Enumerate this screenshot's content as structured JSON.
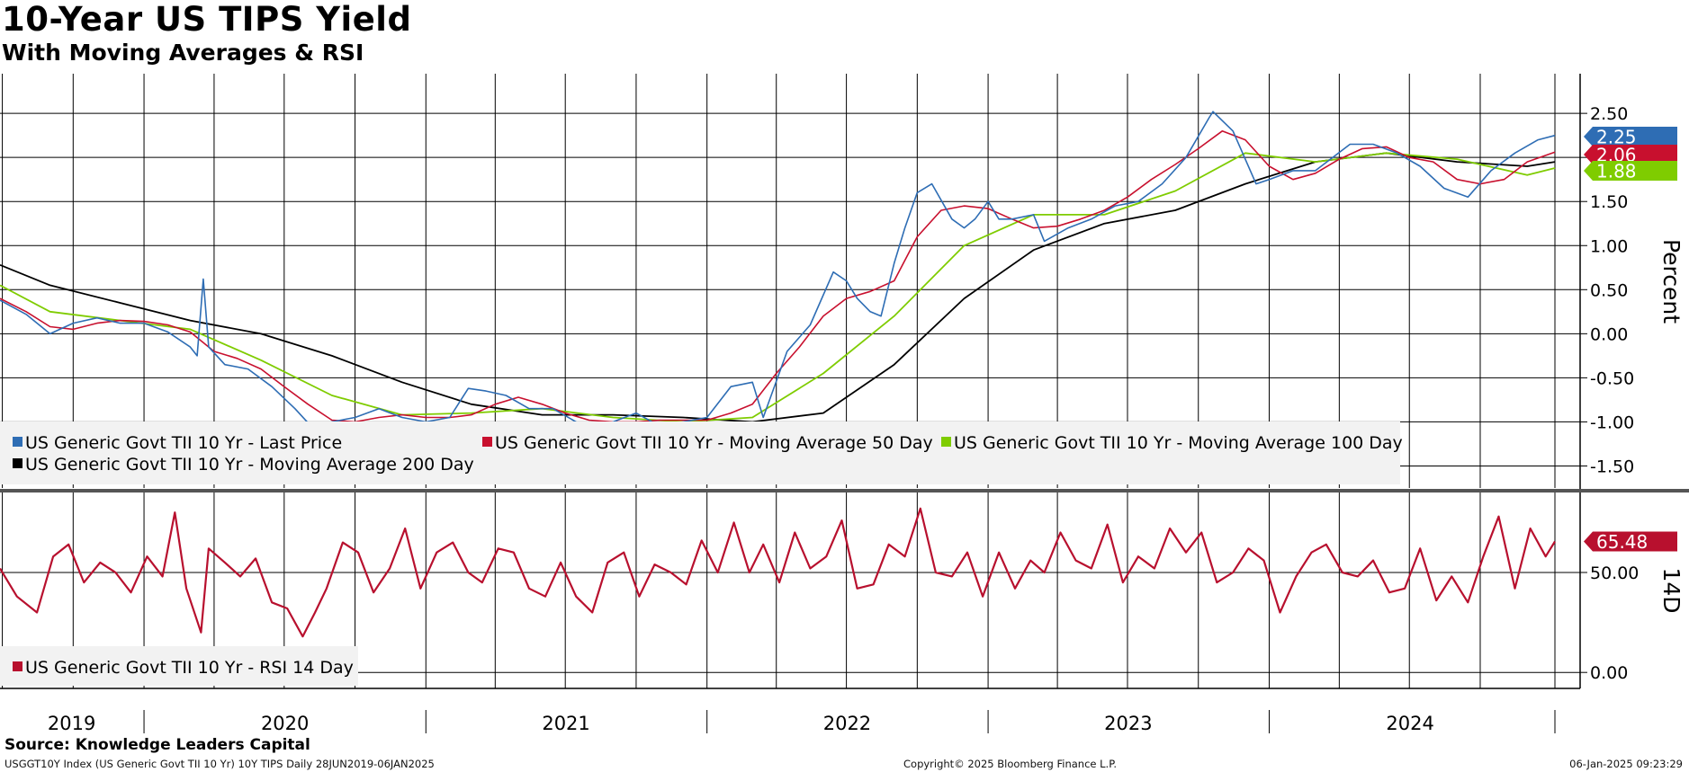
{
  "header": {
    "title": "10-Year US TIPS Yield",
    "subtitle": "With Moving Averages & RSI"
  },
  "footer": {
    "source": "Source: Knowledge Leaders Capital",
    "ticker_line": "USGGT10Y Index (US Generic Govt TII 10 Yr) 10Y TIPS  Daily 28JUN2019-06JAN2025",
    "copyright": "Copyright© 2025 Bloomberg Finance L.P.",
    "timestamp": "06-Jan-2025 09:23:29"
  },
  "colors": {
    "last_price": "#2e6db4",
    "ma50": "#c8102e",
    "ma100": "#7fcc00",
    "ma200": "#000000",
    "rsi": "#b8102e",
    "grid": "#000000",
    "legend_bg": "#f2f2f2"
  },
  "chart_data": [
    {
      "type": "line",
      "ylabel": "Percent",
      "ylim": [
        -1.75,
        2.95
      ],
      "yticks": [
        "2.50",
        "2.00",
        "1.50",
        "1.00",
        "0.50",
        "0.00",
        "-0.50",
        "-1.00",
        "-1.50"
      ],
      "x_categories": [
        "2019",
        "2020",
        "2021",
        "2022",
        "2023",
        "2024"
      ],
      "x_range": [
        "2019-06-28",
        "2025-01-06"
      ],
      "grid": true,
      "legend_position": "bottom-left",
      "series": [
        {
          "name": "US Generic Govt TII 10 Yr - Last Price",
          "color_key": "last_price",
          "last_value_label": "2.25",
          "x": [
            "2019-06-28",
            "2019-08-01",
            "2019-09-01",
            "2019-10-01",
            "2019-11-01",
            "2019-12-01",
            "2020-01-01",
            "2020-02-01",
            "2020-03-01",
            "2020-03-10",
            "2020-03-18",
            "2020-03-25",
            "2020-04-15",
            "2020-05-15",
            "2020-06-15",
            "2020-07-15",
            "2020-08-05",
            "2020-09-01",
            "2020-10-01",
            "2020-11-01",
            "2020-12-01",
            "2021-01-01",
            "2021-02-01",
            "2021-02-25",
            "2021-03-20",
            "2021-04-15",
            "2021-05-15",
            "2021-06-15",
            "2021-07-15",
            "2021-08-05",
            "2021-09-01",
            "2021-10-01",
            "2021-11-01",
            "2021-12-01",
            "2022-01-01",
            "2022-02-01",
            "2022-03-01",
            "2022-03-15",
            "2022-04-15",
            "2022-05-15",
            "2022-06-14",
            "2022-07-01",
            "2022-07-15",
            "2022-08-01",
            "2022-08-15",
            "2022-09-01",
            "2022-09-15",
            "2022-10-01",
            "2022-10-20",
            "2022-11-15",
            "2022-12-01",
            "2022-12-15",
            "2023-01-01",
            "2023-01-15",
            "2023-02-01",
            "2023-03-01",
            "2023-03-15",
            "2023-04-15",
            "2023-05-15",
            "2023-06-15",
            "2023-07-15",
            "2023-08-15",
            "2023-09-15",
            "2023-10-15",
            "2023-10-20",
            "2023-11-15",
            "2023-12-15",
            "2024-01-01",
            "2024-02-01",
            "2024-03-01",
            "2024-04-15",
            "2024-05-15",
            "2024-06-15",
            "2024-07-15",
            "2024-08-15",
            "2024-09-15",
            "2024-10-15",
            "2024-11-15",
            "2024-12-15",
            "2025-01-06"
          ],
          "y": [
            0.38,
            0.22,
            0.0,
            0.12,
            0.18,
            0.12,
            0.12,
            0.02,
            -0.15,
            -0.25,
            0.62,
            -0.15,
            -0.35,
            -0.4,
            -0.6,
            -0.85,
            -1.05,
            -1.0,
            -0.95,
            -0.85,
            -0.95,
            -1.0,
            -0.95,
            -0.62,
            -0.65,
            -0.7,
            -0.85,
            -0.85,
            -1.0,
            -1.1,
            -1.0,
            -0.9,
            -1.05,
            -1.0,
            -0.95,
            -0.6,
            -0.55,
            -0.95,
            -0.2,
            0.1,
            0.7,
            0.6,
            0.4,
            0.25,
            0.2,
            0.8,
            1.2,
            1.6,
            1.7,
            1.3,
            1.2,
            1.3,
            1.5,
            1.3,
            1.3,
            1.35,
            1.05,
            1.2,
            1.3,
            1.45,
            1.5,
            1.7,
            2.0,
            2.45,
            2.52,
            2.3,
            1.7,
            1.75,
            1.85,
            1.85,
            2.15,
            2.15,
            2.05,
            1.9,
            1.65,
            1.55,
            1.85,
            2.05,
            2.2,
            2.25
          ]
        },
        {
          "name": "US Generic Govt TII 10 Yr - Moving Average 50 Day",
          "color_key": "ma50",
          "last_value_label": "2.06",
          "x": [
            "2019-06-28",
            "2019-08-01",
            "2019-09-01",
            "2019-10-01",
            "2019-11-01",
            "2019-12-01",
            "2020-01-01",
            "2020-02-01",
            "2020-03-01",
            "2020-04-01",
            "2020-05-01",
            "2020-06-01",
            "2020-07-01",
            "2020-08-01",
            "2020-09-01",
            "2020-10-01",
            "2020-11-01",
            "2020-12-01",
            "2021-01-01",
            "2021-02-01",
            "2021-03-01",
            "2021-04-01",
            "2021-05-01",
            "2021-06-01",
            "2021-07-01",
            "2021-08-01",
            "2021-09-01",
            "2021-10-01",
            "2021-11-01",
            "2021-12-01",
            "2022-01-01",
            "2022-02-01",
            "2022-03-01",
            "2022-04-01",
            "2022-05-01",
            "2022-06-01",
            "2022-07-01",
            "2022-08-01",
            "2022-09-01",
            "2022-10-01",
            "2022-11-01",
            "2022-12-01",
            "2023-01-01",
            "2023-02-01",
            "2023-03-01",
            "2023-04-01",
            "2023-05-01",
            "2023-06-01",
            "2023-07-01",
            "2023-08-01",
            "2023-09-01",
            "2023-10-01",
            "2023-11-01",
            "2023-12-01",
            "2024-01-01",
            "2024-02-01",
            "2024-03-01",
            "2024-04-01",
            "2024-05-01",
            "2024-06-01",
            "2024-07-01",
            "2024-08-01",
            "2024-09-01",
            "2024-10-01",
            "2024-11-01",
            "2024-12-01",
            "2025-01-06"
          ],
          "y": [
            0.4,
            0.25,
            0.08,
            0.05,
            0.12,
            0.15,
            0.14,
            0.1,
            0.02,
            -0.2,
            -0.28,
            -0.4,
            -0.6,
            -0.8,
            -0.98,
            -1.0,
            -0.95,
            -0.92,
            -0.95,
            -0.95,
            -0.92,
            -0.8,
            -0.72,
            -0.8,
            -0.9,
            -0.98,
            -1.0,
            -1.0,
            -0.98,
            -0.98,
            -0.98,
            -0.9,
            -0.8,
            -0.45,
            -0.15,
            0.2,
            0.4,
            0.48,
            0.6,
            1.1,
            1.4,
            1.45,
            1.42,
            1.3,
            1.2,
            1.22,
            1.3,
            1.4,
            1.55,
            1.75,
            1.92,
            2.1,
            2.3,
            2.2,
            1.9,
            1.75,
            1.82,
            1.98,
            2.1,
            2.12,
            2.0,
            1.95,
            1.75,
            1.7,
            1.75,
            1.95,
            2.06
          ]
        },
        {
          "name": "US Generic Govt TII 10 Yr - Moving Average 100 Day",
          "color_key": "ma100",
          "last_value_label": "1.88",
          "x": [
            "2019-06-28",
            "2019-09-01",
            "2019-12-01",
            "2020-03-01",
            "2020-06-01",
            "2020-09-01",
            "2020-12-01",
            "2021-03-01",
            "2021-06-01",
            "2021-09-01",
            "2021-12-01",
            "2022-03-01",
            "2022-06-01",
            "2022-09-01",
            "2022-12-01",
            "2023-03-01",
            "2023-06-01",
            "2023-09-01",
            "2023-12-01",
            "2024-03-01",
            "2024-06-01",
            "2024-09-01",
            "2024-12-01",
            "2025-01-06"
          ],
          "y": [
            0.55,
            0.25,
            0.15,
            0.05,
            -0.3,
            -0.7,
            -0.92,
            -0.9,
            -0.85,
            -0.95,
            -1.0,
            -0.95,
            -0.45,
            0.2,
            1.0,
            1.35,
            1.35,
            1.62,
            2.05,
            1.95,
            2.05,
            1.98,
            1.8,
            1.88
          ]
        },
        {
          "name": "US Generic Govt TII 10 Yr - Moving Average 200 Day",
          "color_key": "ma200",
          "last_value_label": "",
          "x": [
            "2019-06-28",
            "2019-09-01",
            "2019-12-01",
            "2020-03-01",
            "2020-06-01",
            "2020-09-01",
            "2020-12-01",
            "2021-03-01",
            "2021-06-01",
            "2021-09-01",
            "2021-12-01",
            "2022-03-01",
            "2022-06-01",
            "2022-09-01",
            "2022-12-01",
            "2023-03-01",
            "2023-06-01",
            "2023-09-01",
            "2023-12-01",
            "2024-03-01",
            "2024-06-01",
            "2024-09-01",
            "2024-12-01",
            "2025-01-06"
          ],
          "y": [
            0.78,
            0.55,
            0.35,
            0.15,
            0.0,
            -0.25,
            -0.55,
            -0.8,
            -0.92,
            -0.92,
            -0.95,
            -1.0,
            -0.9,
            -0.35,
            0.4,
            0.95,
            1.25,
            1.4,
            1.7,
            1.95,
            2.05,
            1.95,
            1.9,
            1.95
          ]
        }
      ]
    },
    {
      "type": "line",
      "ylabel": "14D",
      "ylim": [
        -8,
        90
      ],
      "yticks": [
        "50.00",
        "0.00"
      ],
      "legend_position": "bottom-left",
      "series": [
        {
          "name": "US Generic Govt TII 10 Yr - RSI 14 Day",
          "color_key": "rsi",
          "last_value_label": "65.48",
          "x": [
            "2019-06-28",
            "2019-07-20",
            "2019-08-15",
            "2019-09-05",
            "2019-09-25",
            "2019-10-15",
            "2019-11-05",
            "2019-11-25",
            "2019-12-15",
            "2020-01-05",
            "2020-01-25",
            "2020-02-10",
            "2020-02-25",
            "2020-03-15",
            "2020-03-25",
            "2020-04-15",
            "2020-05-05",
            "2020-05-25",
            "2020-06-15",
            "2020-07-05",
            "2020-07-25",
            "2020-08-10",
            "2020-08-25",
            "2020-09-15",
            "2020-10-05",
            "2020-10-25",
            "2020-11-15",
            "2020-12-05",
            "2020-12-25",
            "2021-01-15",
            "2021-02-05",
            "2021-02-25",
            "2021-03-15",
            "2021-04-05",
            "2021-04-25",
            "2021-05-15",
            "2021-06-05",
            "2021-06-25",
            "2021-07-15",
            "2021-08-05",
            "2021-08-25",
            "2021-09-15",
            "2021-10-05",
            "2021-10-25",
            "2021-11-15",
            "2021-12-05",
            "2021-12-25",
            "2022-01-15",
            "2022-02-05",
            "2022-02-25",
            "2022-03-15",
            "2022-04-05",
            "2022-04-25",
            "2022-05-15",
            "2022-06-05",
            "2022-06-25",
            "2022-07-15",
            "2022-08-05",
            "2022-08-25",
            "2022-09-15",
            "2022-10-05",
            "2022-10-25",
            "2022-11-15",
            "2022-12-05",
            "2022-12-25",
            "2023-01-15",
            "2023-02-05",
            "2023-02-25",
            "2023-03-15",
            "2023-04-05",
            "2023-04-25",
            "2023-05-15",
            "2023-06-05",
            "2023-06-25",
            "2023-07-15",
            "2023-08-05",
            "2023-08-25",
            "2023-09-15",
            "2023-10-05",
            "2023-10-25",
            "2023-11-15",
            "2023-12-05",
            "2023-12-25",
            "2024-01-15",
            "2024-02-05",
            "2024-02-25",
            "2024-03-15",
            "2024-04-05",
            "2024-04-25",
            "2024-05-15",
            "2024-06-05",
            "2024-06-25",
            "2024-07-15",
            "2024-08-05",
            "2024-08-25",
            "2024-09-15",
            "2024-10-05",
            "2024-10-25",
            "2024-11-15",
            "2024-12-05",
            "2024-12-25",
            "2025-01-06"
          ],
          "y": [
            52,
            38,
            30,
            58,
            64,
            45,
            55,
            50,
            40,
            58,
            48,
            80,
            42,
            20,
            62,
            55,
            48,
            57,
            35,
            32,
            18,
            30,
            42,
            65,
            60,
            40,
            52,
            72,
            42,
            60,
            65,
            50,
            45,
            62,
            60,
            42,
            38,
            55,
            38,
            30,
            55,
            60,
            38,
            54,
            50,
            44,
            66,
            50,
            75,
            50,
            64,
            45,
            70,
            52,
            58,
            76,
            42,
            44,
            64,
            58,
            82,
            50,
            48,
            60,
            38,
            60,
            42,
            56,
            50,
            70,
            56,
            52,
            74,
            45,
            58,
            52,
            72,
            60,
            70,
            45,
            50,
            62,
            56,
            30,
            48,
            60,
            64,
            50,
            48,
            56,
            40,
            42,
            62,
            36,
            48,
            35,
            58,
            78,
            42,
            72,
            58,
            65.48
          ]
        }
      ]
    }
  ]
}
